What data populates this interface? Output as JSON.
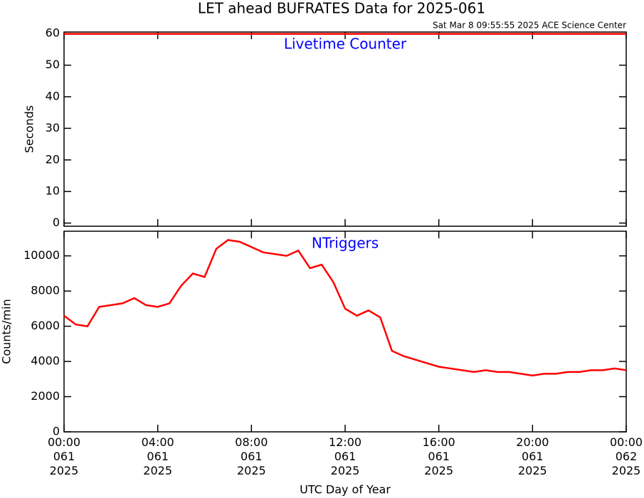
{
  "title": "LET ahead BUFRATES Data for 2025-061",
  "subtitle": "Sat Mar  8 09:55:55 2025 ACE Science Center",
  "xlabel": "UTC Day of Year",
  "chart_data": [
    {
      "type": "line",
      "annotation": "Livetime Counter",
      "annotation_color": "#0000ff",
      "ylabel": "Seconds",
      "xlim": [
        0,
        24
      ],
      "xticks": [
        0,
        4,
        8,
        12,
        16,
        20,
        24
      ],
      "ylim": [
        -1,
        60.5
      ],
      "yticks": [
        0,
        10,
        20,
        30,
        40,
        50,
        60
      ],
      "x": [
        0,
        0.5,
        1,
        1.5,
        2,
        2.5,
        3,
        3.5,
        4,
        4.5,
        5,
        5.5,
        6,
        6.5,
        7,
        7.5,
        8,
        8.5,
        9,
        9.5,
        10,
        10.5,
        11,
        11.5,
        12,
        12.5,
        13,
        13.5,
        14,
        14.5,
        15,
        15.5,
        16,
        16.5,
        17,
        17.5,
        18,
        18.5,
        19,
        19.5,
        20,
        20.5,
        21,
        21.5,
        22,
        22.5,
        23,
        23.5,
        24
      ],
      "series": [
        {
          "color": "#ff0000",
          "values": [
            59.9,
            59.9,
            59.9,
            59.9,
            59.9,
            59.9,
            59.9,
            59.9,
            59.9,
            59.9,
            59.9,
            59.9,
            59.9,
            59.9,
            59.9,
            59.9,
            59.9,
            59.9,
            59.9,
            59.9,
            59.9,
            59.9,
            59.9,
            59.9,
            59.9,
            59.9,
            59.9,
            59.9,
            59.9,
            59.9,
            59.9,
            59.9,
            59.9,
            59.9,
            59.9,
            59.9,
            59.9,
            59.9,
            59.9,
            59.9,
            59.9,
            59.9,
            59.9,
            59.9,
            59.9,
            59.9,
            59.9,
            59.9,
            59.9
          ]
        }
      ]
    },
    {
      "type": "line",
      "annotation": "NTriggers",
      "annotation_color": "#0000ff",
      "ylabel": "Counts/min",
      "xlim": [
        0,
        24
      ],
      "xticks": [
        {
          "value": 0,
          "label": "00:00\n061\n2025"
        },
        {
          "value": 4,
          "label": "04:00\n061\n2025"
        },
        {
          "value": 8,
          "label": "08:00\n061\n2025"
        },
        {
          "value": 12,
          "label": "12:00\n061\n2025"
        },
        {
          "value": 16,
          "label": "16:00\n061\n2025"
        },
        {
          "value": 20,
          "label": "20:00\n061\n2025"
        },
        {
          "value": 24,
          "label": "00:00\n062\n2025"
        }
      ],
      "ylim": [
        0,
        11400
      ],
      "yticks": [
        0,
        2000,
        4000,
        6000,
        8000,
        10000
      ],
      "x": [
        0,
        0.5,
        1,
        1.5,
        2,
        2.5,
        3,
        3.5,
        4,
        4.5,
        5,
        5.5,
        6,
        6.5,
        7,
        7.5,
        8,
        8.5,
        9,
        9.5,
        10,
        10.5,
        11,
        11.5,
        12,
        12.5,
        13,
        13.5,
        14,
        14.5,
        15,
        15.5,
        16,
        16.5,
        17,
        17.5,
        18,
        18.5,
        19,
        19.5,
        20,
        20.5,
        21,
        21.5,
        22,
        22.5,
        23,
        23.5,
        24
      ],
      "series": [
        {
          "color": "#ff0000",
          "values": [
            6600,
            6100,
            6000,
            7100,
            7200,
            7300,
            7600,
            7200,
            7100,
            7300,
            8300,
            9000,
            8800,
            10400,
            10900,
            10800,
            10500,
            10200,
            10100,
            10000,
            10300,
            9300,
            9500,
            8500,
            7000,
            6600,
            6900,
            6500,
            4600,
            4300,
            4100,
            3900,
            3700,
            3600,
            3500,
            3400,
            3500,
            3400,
            3400,
            3300,
            3200,
            3300,
            3300,
            3400,
            3400,
            3500,
            3500,
            3600,
            3500
          ]
        }
      ]
    }
  ]
}
